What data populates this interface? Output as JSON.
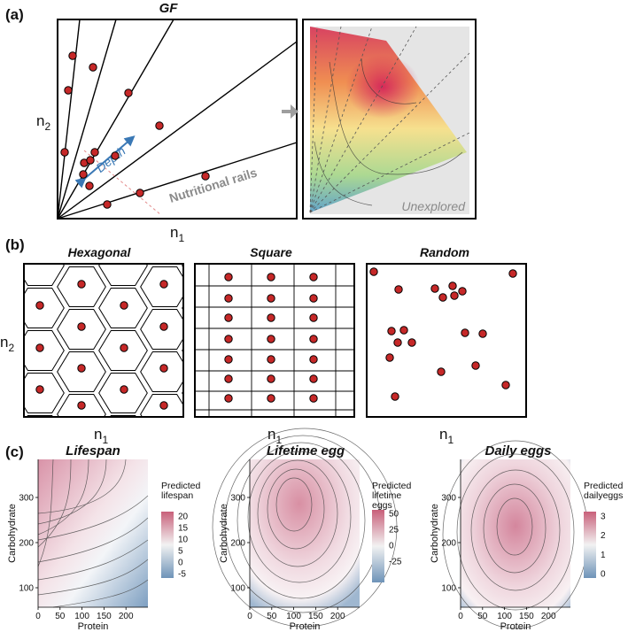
{
  "panels": {
    "a": {
      "label": "(a)",
      "title": "GF",
      "depth_label": "Depth",
      "rails_label": "Nutritional rails",
      "unexplored_label": "Unexplored",
      "x_axis": "n",
      "x_sub": "1",
      "y_axis": "n",
      "y_sub": "2"
    },
    "b": {
      "label": "(b)",
      "y_axis": "n",
      "y_sub": "2",
      "sub_panels": [
        {
          "title": "Hexagonal",
          "x_axis": "n",
          "x_sub": "1"
        },
        {
          "title": "Square",
          "x_axis": "n",
          "x_sub": "1"
        },
        {
          "title": "Random",
          "x_axis": "n",
          "x_sub": "1"
        }
      ]
    },
    "c": {
      "label": "(c)",
      "plots": [
        {
          "title": "Lifespan",
          "xlabel": "Protein",
          "ylabel": "Carbohydrate",
          "xticks": [
            "0",
            "50",
            "100",
            "150",
            "200"
          ],
          "yticks": [
            "100",
            "200",
            "300"
          ],
          "legend_title": [
            "Predicted",
            "lifespan"
          ],
          "legend_ticks": [
            "20",
            "15",
            "10",
            "5",
            "0",
            "-5"
          ]
        },
        {
          "title": "Lifetime egg",
          "xlabel": "Protein",
          "ylabel": "Carbohydrate",
          "xticks": [
            "0",
            "50",
            "100",
            "150",
            "200"
          ],
          "yticks": [
            "100",
            "200",
            "300"
          ],
          "legend_title": [
            "Predicted",
            "lifetime",
            "eggs"
          ],
          "legend_ticks": [
            "50",
            "25",
            "0",
            "-25"
          ]
        },
        {
          "title": "Daily eggs",
          "xlabel": "Protein",
          "ylabel": "Carbohydrate",
          "xticks": [
            "0",
            "50",
            "100",
            "150",
            "200"
          ],
          "yticks": [
            "100",
            "200",
            "300"
          ],
          "legend_title": [
            "Predicted",
            "dailyeggs"
          ],
          "legend_ticks": [
            "3",
            "2",
            "1",
            "0"
          ]
        }
      ]
    }
  },
  "colors": {
    "dot": "#c62828",
    "arrow_blue": "#3a78b5",
    "rails_gray": "#8a8a8a",
    "heat_high": "#c8607a",
    "heat_low": "#6e93b8"
  }
}
